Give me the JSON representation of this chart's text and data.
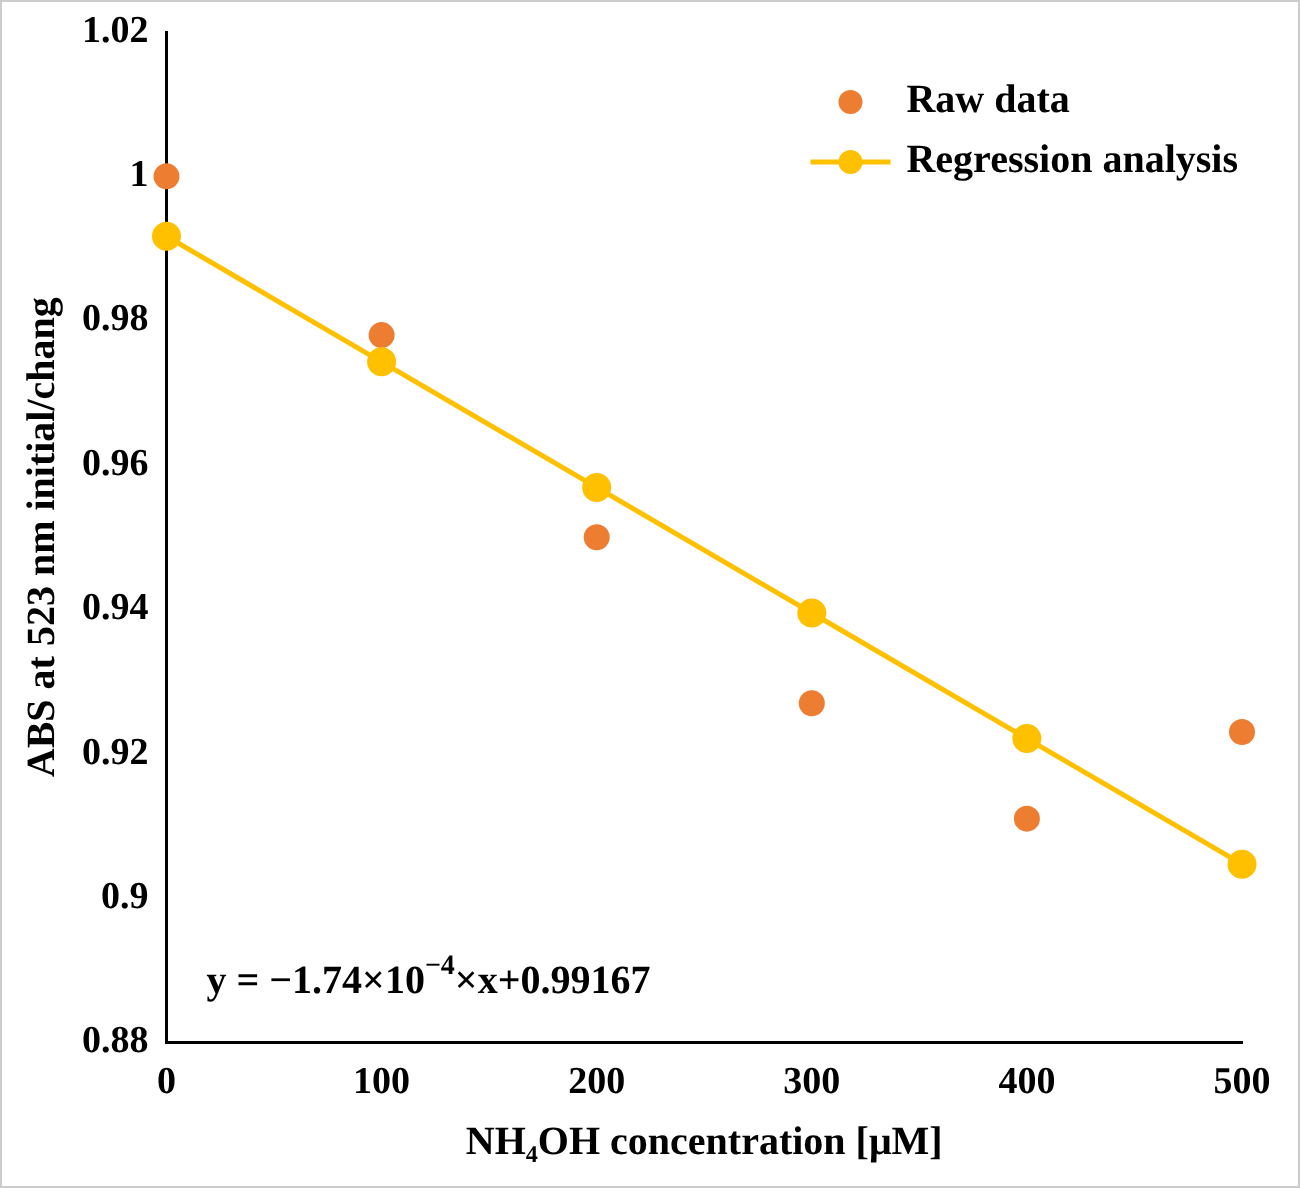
{
  "chart_data": {
    "type": "scatter",
    "xlabel": "NH₄OH concentration [μM]",
    "ylabel": "ABS at 523 nm initial/chang",
    "x": [
      0,
      100,
      200,
      300,
      400,
      500
    ],
    "series": [
      {
        "name": "Raw data",
        "type": "scatter",
        "color": "#ed7d31",
        "marker": "circle",
        "values": [
          1.0,
          0.978,
          0.95,
          0.927,
          0.911,
          0.923
        ]
      },
      {
        "name": "Regression analysis",
        "type": "line",
        "color": "#ffc000",
        "marker": "circle",
        "line_style": "solid",
        "values": [
          0.9917,
          0.9743,
          0.9569,
          0.9395,
          0.9221,
          0.9047
        ]
      }
    ],
    "xlim": [
      0,
      500
    ],
    "xticks": [
      0,
      100,
      200,
      300,
      400,
      500
    ],
    "ylim": [
      0.88,
      1.02
    ],
    "yticks": [
      0.88,
      0.9,
      0.92,
      0.94,
      0.96,
      0.98,
      1,
      1.02
    ],
    "grid": false,
    "legend": "top right",
    "annotations": [
      "y = −1.74×10$^{−4}$×x+0.99167"
    ]
  }
}
